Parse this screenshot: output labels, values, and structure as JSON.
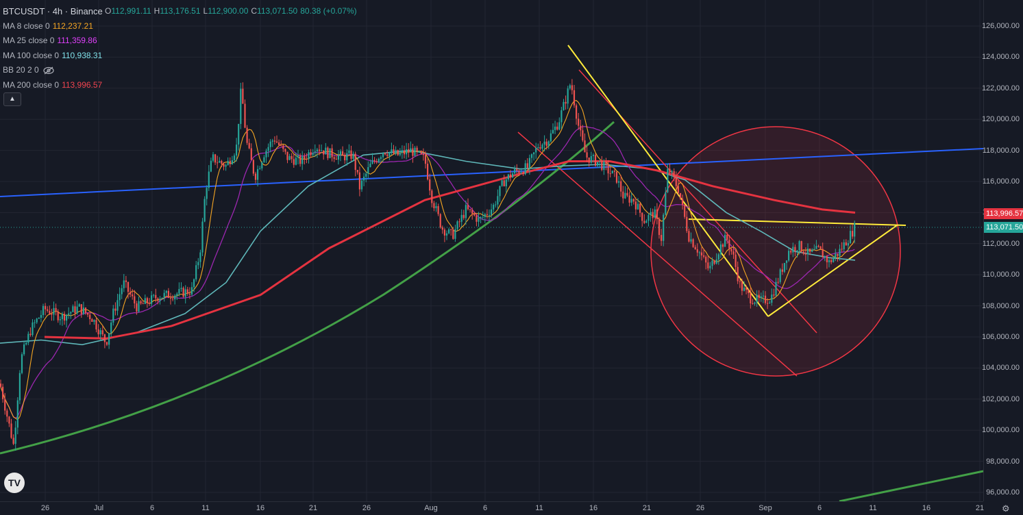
{
  "symbol": {
    "title": "BTCUSDT · 4h · Binance",
    "open_label": "O",
    "open": "112,991.11",
    "high_label": "H",
    "high": "113,176.51",
    "low_label": "L",
    "low": "112,900.00",
    "close_label": "C",
    "close": "113,071.50",
    "change": "80.38 (+0.07%)"
  },
  "indicators": [
    {
      "label": "MA 8 close 0",
      "value": "112,237.21",
      "color": "#F6A623"
    },
    {
      "label": "MA 25 close 0",
      "value": "111,359.86",
      "color": "#E040FB"
    },
    {
      "label": "MA 100 close 0",
      "value": "110,938.31",
      "color": "#7FE0E8"
    },
    {
      "label": "BB 20 2 0",
      "value": "",
      "icon": "eye-hidden-icon"
    },
    {
      "label": "MA 200 close 0",
      "value": "113,996.57",
      "color": "#F0444F"
    }
  ],
  "collapse_icon": "chevron-up-icon",
  "price_axis": [
    "126,000.00",
    "124,000.00",
    "122,000.00",
    "120,000.00",
    "118,000.00",
    "116,000.00",
    "114,000.00",
    "112,000.00",
    "110,000.00",
    "108,000.00",
    "106,000.00",
    "104,000.00",
    "102,000.00",
    "100,000.00",
    "98,000.00",
    "96,000.00"
  ],
  "time_axis": [
    "26",
    "Jul",
    "6",
    "11",
    "16",
    "21",
    "26",
    "Aug",
    "6",
    "11",
    "16",
    "21",
    "26",
    "Sep",
    "6",
    "11",
    "16",
    "21"
  ],
  "price_tags": {
    "ma200": "113,996.57",
    "last": "113,071.50"
  },
  "colors": {
    "up": "#26A69A",
    "down": "#EF5350",
    "ma8": "#F6A623",
    "ma25": "#9C27B0",
    "ma100": "#5FB8BA",
    "ma200": "#E53340",
    "trend_blue": "#2962FF",
    "trend_green": "#43A047",
    "trend_yellow": "#FFEB3B",
    "channel_red": "#F23645"
  },
  "logo": "TV",
  "settings_icon": "gear-icon",
  "chart_data": {
    "type": "candlestick",
    "y_range": [
      95000,
      127000
    ],
    "close_path": [
      [
        0,
        103000
      ],
      [
        20,
        99000
      ],
      [
        30,
        104500
      ],
      [
        45,
        106500
      ],
      [
        65,
        107800
      ],
      [
        90,
        107300
      ],
      [
        115,
        107900
      ],
      [
        135,
        107200
      ],
      [
        155,
        105600
      ],
      [
        165,
        107500
      ],
      [
        180,
        109500
      ],
      [
        200,
        107900
      ],
      [
        230,
        108600
      ],
      [
        260,
        108800
      ],
      [
        280,
        109000
      ],
      [
        292,
        111500
      ],
      [
        300,
        115500
      ],
      [
        310,
        117500
      ],
      [
        330,
        117000
      ],
      [
        345,
        118200
      ],
      [
        352,
        122000
      ],
      [
        360,
        118500
      ],
      [
        372,
        116300
      ],
      [
        385,
        117800
      ],
      [
        400,
        118800
      ],
      [
        420,
        117500
      ],
      [
        440,
        117300
      ],
      [
        460,
        118300
      ],
      [
        480,
        117800
      ],
      [
        500,
        117600
      ],
      [
        515,
        117700
      ],
      [
        525,
        115600
      ],
      [
        540,
        117000
      ],
      [
        560,
        118000
      ],
      [
        580,
        117700
      ],
      [
        600,
        118000
      ],
      [
        620,
        117400
      ],
      [
        630,
        115000
      ],
      [
        645,
        113000
      ],
      [
        660,
        112500
      ],
      [
        680,
        114200
      ],
      [
        700,
        113500
      ],
      [
        720,
        114400
      ],
      [
        735,
        116000
      ],
      [
        750,
        116600
      ],
      [
        770,
        116900
      ],
      [
        785,
        118300
      ],
      [
        800,
        118700
      ],
      [
        815,
        119800
      ],
      [
        825,
        121200
      ],
      [
        833,
        122400
      ],
      [
        845,
        119400
      ],
      [
        855,
        117600
      ],
      [
        875,
        117200
      ],
      [
        900,
        116200
      ],
      [
        910,
        115000
      ],
      [
        925,
        114800
      ],
      [
        940,
        113500
      ],
      [
        955,
        114000
      ],
      [
        965,
        112300
      ],
      [
        975,
        116900
      ],
      [
        990,
        115500
      ],
      [
        1005,
        112500
      ],
      [
        1020,
        111500
      ],
      [
        1035,
        110300
      ],
      [
        1050,
        111700
      ],
      [
        1060,
        112400
      ],
      [
        1070,
        111200
      ],
      [
        1080,
        109300
      ],
      [
        1095,
        108500
      ],
      [
        1110,
        108300
      ],
      [
        1125,
        108500
      ],
      [
        1140,
        110200
      ],
      [
        1150,
        111500
      ],
      [
        1165,
        111900
      ],
      [
        1180,
        111300
      ],
      [
        1195,
        111600
      ],
      [
        1210,
        110800
      ],
      [
        1225,
        111500
      ],
      [
        1240,
        112500
      ],
      [
        1248,
        113070
      ]
    ],
    "ma200_path": [
      [
        65,
        106000
      ],
      [
        155,
        105900
      ],
      [
        250,
        106700
      ],
      [
        380,
        108700
      ],
      [
        480,
        111700
      ],
      [
        620,
        114800
      ],
      [
        760,
        116500
      ],
      [
        830,
        117300
      ],
      [
        890,
        117300
      ],
      [
        960,
        116700
      ],
      [
        1040,
        115700
      ],
      [
        1130,
        114800
      ],
      [
        1200,
        114200
      ],
      [
        1248,
        113997
      ]
    ],
    "ma100_path": [
      [
        0,
        105600
      ],
      [
        60,
        105800
      ],
      [
        120,
        105500
      ],
      [
        200,
        106300
      ],
      [
        270,
        107500
      ],
      [
        330,
        109500
      ],
      [
        380,
        112800
      ],
      [
        450,
        115700
      ],
      [
        530,
        117700
      ],
      [
        600,
        118000
      ],
      [
        680,
        117300
      ],
      [
        760,
        116800
      ],
      [
        820,
        117000
      ],
      [
        880,
        117100
      ],
      [
        950,
        116800
      ],
      [
        1000,
        116100
      ],
      [
        1060,
        114000
      ],
      [
        1110,
        112800
      ],
      [
        1160,
        111500
      ],
      [
        1210,
        111100
      ],
      [
        1248,
        110938
      ]
    ]
  }
}
